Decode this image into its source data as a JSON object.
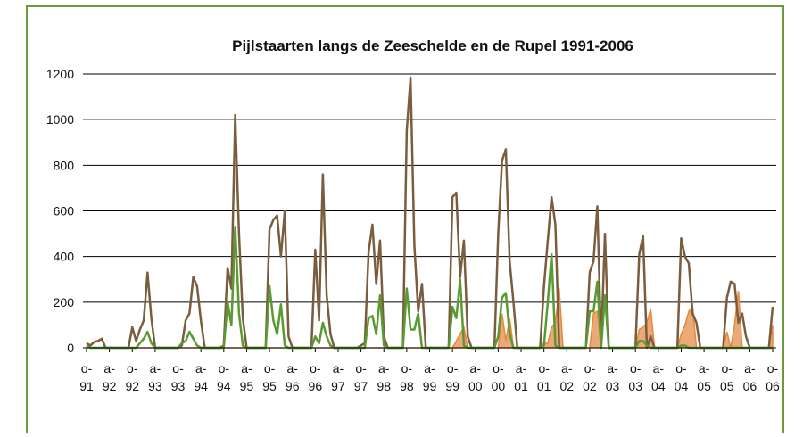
{
  "chart_data": {
    "type": "line",
    "title": "Pijlstaarten langs de Zeeschelde en de Rupel 1991-2006",
    "categories": [
      "o-91",
      null,
      null,
      null,
      null,
      null,
      "a-92",
      null,
      null,
      null,
      null,
      null,
      "o-92",
      null,
      null,
      null,
      null,
      null,
      "a-93",
      null,
      null,
      null,
      null,
      null,
      "o-93",
      null,
      null,
      null,
      null,
      null,
      "a-94",
      null,
      null,
      null,
      null,
      null,
      "o-94",
      null,
      null,
      null,
      null,
      null,
      "a-95",
      null,
      null,
      null,
      null,
      null,
      "o-95",
      null,
      null,
      null,
      null,
      null,
      "a-96",
      null,
      null,
      null,
      null,
      null,
      "o-96",
      null,
      null,
      null,
      null,
      null,
      "a-97",
      null,
      null,
      null,
      null,
      null,
      "o-97",
      null,
      null,
      null,
      null,
      null,
      "a-98",
      null,
      null,
      null,
      null,
      null,
      "o-98",
      null,
      null,
      null,
      null,
      null,
      "a-99",
      null,
      null,
      null,
      null,
      null,
      "o-99",
      null,
      null,
      null,
      null,
      null,
      "a-00",
      null,
      null,
      null,
      null,
      null,
      "o-00",
      null,
      null,
      null,
      null,
      null,
      "a-01",
      null,
      null,
      null,
      null,
      null,
      "o-01",
      null,
      null,
      null,
      null,
      null,
      "a-02",
      null,
      null,
      null,
      null,
      null,
      "o-02",
      null,
      null,
      null,
      null,
      null,
      "a-03",
      null,
      null,
      null,
      null,
      null,
      "o-03",
      null,
      null,
      null,
      null,
      null,
      "a-04",
      null,
      null,
      null,
      null,
      null,
      "o-04",
      null,
      null,
      null,
      null,
      null,
      "a-05",
      null,
      null,
      null,
      null,
      null,
      "o-05",
      null,
      null,
      null,
      null,
      null,
      "a-06",
      null,
      null,
      null,
      null,
      null,
      "o-06"
    ],
    "series": [
      {
        "color": "#e3893a",
        "fill": "#eba978",
        "area": true,
        "values": [
          0,
          0,
          0,
          0,
          0,
          0,
          0,
          0,
          0,
          0,
          0,
          0,
          0,
          0,
          0,
          0,
          0,
          0,
          0,
          0,
          0,
          0,
          0,
          0,
          0,
          0,
          0,
          0,
          0,
          0,
          0,
          0,
          0,
          0,
          0,
          0,
          0,
          0,
          0,
          0,
          0,
          0,
          0,
          0,
          0,
          0,
          0,
          0,
          0,
          0,
          0,
          0,
          0,
          0,
          0,
          0,
          0,
          0,
          0,
          0,
          0,
          0,
          0,
          0,
          0,
          0,
          0,
          0,
          0,
          0,
          0,
          0,
          0,
          0,
          0,
          0,
          0,
          0,
          0,
          0,
          0,
          0,
          0,
          0,
          0,
          0,
          0,
          0,
          0,
          0,
          0,
          0,
          0,
          0,
          0,
          0,
          0,
          30,
          60,
          90,
          0,
          0,
          0,
          0,
          0,
          0,
          0,
          0,
          0,
          150,
          30,
          130,
          0,
          0,
          0,
          0,
          0,
          0,
          0,
          0,
          20,
          20,
          90,
          110,
          260,
          0,
          0,
          0,
          0,
          0,
          0,
          0,
          0,
          150,
          160,
          0,
          0,
          0,
          0,
          0,
          0,
          0,
          0,
          0,
          0,
          80,
          90,
          110,
          170,
          0,
          0,
          0,
          0,
          0,
          0,
          0,
          60,
          100,
          160,
          180,
          0,
          0,
          0,
          0,
          0,
          0,
          0,
          0,
          70,
          0,
          100,
          250,
          0,
          0,
          0,
          0,
          0,
          0,
          0,
          0,
          100
        ]
      },
      {
        "color": "#7a5c3e",
        "values": [
          20,
          10,
          25,
          30,
          40,
          0,
          0,
          0,
          0,
          0,
          0,
          0,
          90,
          30,
          80,
          120,
          330,
          130,
          0,
          0,
          0,
          0,
          0,
          0,
          0,
          10,
          120,
          150,
          310,
          270,
          120,
          0,
          0,
          0,
          0,
          0,
          10,
          350,
          260,
          1020,
          500,
          130,
          0,
          0,
          0,
          0,
          0,
          0,
          520,
          560,
          580,
          400,
          600,
          50,
          0,
          0,
          0,
          0,
          0,
          0,
          430,
          120,
          760,
          230,
          60,
          0,
          0,
          0,
          0,
          0,
          0,
          0,
          10,
          20,
          420,
          540,
          280,
          470,
          50,
          0,
          0,
          0,
          0,
          0,
          950,
          1185,
          450,
          160,
          280,
          0,
          0,
          0,
          0,
          0,
          0,
          0,
          660,
          680,
          310,
          470,
          50,
          0,
          0,
          0,
          0,
          0,
          0,
          0,
          500,
          820,
          870,
          380,
          200,
          0,
          0,
          0,
          0,
          0,
          0,
          0,
          270,
          470,
          660,
          540,
          0,
          0,
          0,
          0,
          0,
          0,
          0,
          0,
          330,
          380,
          620,
          10,
          500,
          0,
          0,
          0,
          0,
          0,
          0,
          0,
          0,
          410,
          490,
          0,
          50,
          0,
          0,
          0,
          0,
          0,
          0,
          0,
          480,
          400,
          370,
          150,
          110,
          0,
          0,
          0,
          0,
          0,
          0,
          0,
          220,
          290,
          280,
          110,
          150,
          50,
          0,
          0,
          0,
          0,
          0,
          0,
          180
        ]
      },
      {
        "color": "#5a9a32",
        "values": [
          10,
          0,
          0,
          0,
          0,
          0,
          0,
          0,
          0,
          0,
          0,
          0,
          0,
          0,
          20,
          40,
          70,
          20,
          0,
          0,
          0,
          0,
          0,
          0,
          0,
          20,
          30,
          70,
          40,
          10,
          0,
          0,
          0,
          0,
          0,
          0,
          0,
          200,
          100,
          530,
          150,
          10,
          0,
          0,
          0,
          0,
          0,
          0,
          270,
          120,
          60,
          190,
          10,
          0,
          0,
          0,
          0,
          0,
          0,
          0,
          50,
          20,
          110,
          50,
          10,
          0,
          0,
          0,
          0,
          0,
          0,
          0,
          0,
          0,
          130,
          140,
          60,
          230,
          10,
          0,
          0,
          0,
          0,
          0,
          260,
          80,
          80,
          150,
          0,
          0,
          0,
          0,
          0,
          0,
          0,
          0,
          180,
          130,
          300,
          10,
          0,
          0,
          0,
          0,
          0,
          0,
          0,
          0,
          50,
          220,
          240,
          60,
          0,
          0,
          0,
          0,
          0,
          0,
          0,
          0,
          10,
          200,
          410,
          10,
          0,
          0,
          0,
          0,
          0,
          0,
          0,
          0,
          160,
          160,
          290,
          0,
          230,
          0,
          0,
          0,
          0,
          0,
          0,
          0,
          0,
          30,
          30,
          10,
          0,
          0,
          0,
          0,
          0,
          0,
          0,
          0,
          10,
          10,
          0,
          0,
          0,
          0,
          0,
          0,
          0,
          0,
          0,
          0,
          0,
          0,
          0,
          0,
          0,
          0,
          0,
          0,
          0,
          0,
          0,
          0,
          0
        ]
      }
    ],
    "ylim": [
      0,
      1200
    ],
    "yticks": [
      0,
      200,
      400,
      600,
      800,
      1000,
      1200
    ],
    "grid": true
  }
}
